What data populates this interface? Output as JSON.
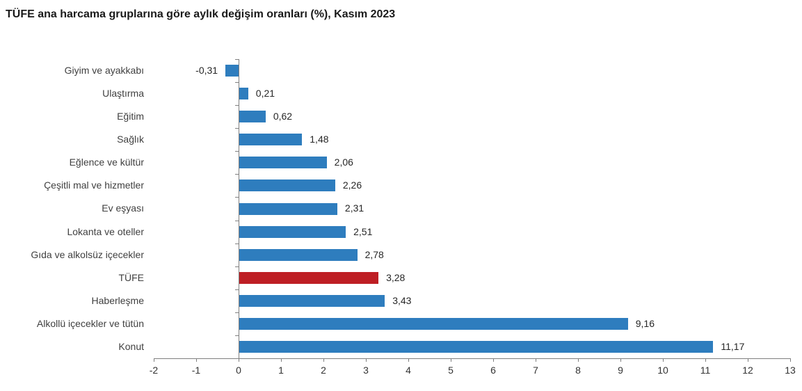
{
  "title": "TÜFE ana harcama gruplarına göre aylık değişim oranları (%), Kasım 2023",
  "colors": {
    "bar": "#2E7DBE",
    "highlight": "#BE1E24",
    "axis": "#7F7F7F",
    "label_text": "#404040"
  },
  "chart_data": {
    "type": "bar",
    "orientation": "horizontal",
    "title": "TÜFE ana harcama gruplarına göre aylık değişim oranları (%), Kasım 2023",
    "xlabel": "",
    "ylabel": "",
    "xlim": [
      -2,
      13
    ],
    "xticks": [
      -2,
      -1,
      0,
      1,
      2,
      3,
      4,
      5,
      6,
      7,
      8,
      9,
      10,
      11,
      12,
      13
    ],
    "grid": false,
    "legend": "none",
    "highlight_category": "TÜFE",
    "categories": [
      "Giyim ve ayakkabı",
      "Ulaştırma",
      "Eğitim",
      "Sağlık",
      "Eğlence ve kültür",
      "Çeşitli mal ve hizmetler",
      "Ev eşyası",
      "Lokanta ve oteller",
      "Gıda ve alkolsüz içecekler",
      "TÜFE",
      "Haberleşme",
      "Alkollü içecekler ve tütün",
      "Konut"
    ],
    "values": [
      -0.31,
      0.21,
      0.62,
      1.48,
      2.06,
      2.26,
      2.31,
      2.51,
      2.78,
      3.28,
      3.43,
      9.16,
      11.17
    ],
    "value_labels": [
      "-0,31",
      "0,21",
      "0,62",
      "1,48",
      "2,06",
      "2,26",
      "2,31",
      "2,51",
      "2,78",
      "3,28",
      "3,43",
      "9,16",
      "11,17"
    ]
  }
}
